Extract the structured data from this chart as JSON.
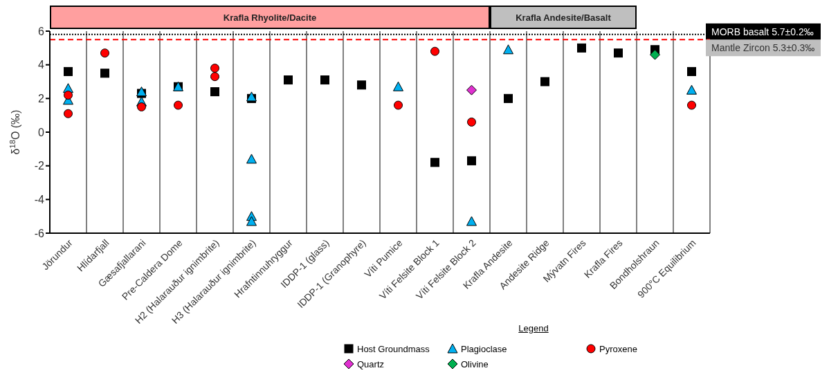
{
  "chart_data": {
    "type": "scatter",
    "ylabel": "δ$^{18}$O (‰)",
    "categories": [
      "Jörundur",
      "Hlídarfjall",
      "Gæsafjallarani",
      "Pre-Caldera Dome",
      "H2 (Halarauður ignimbrite)",
      "H3 (Halarauður ignimbrite)",
      "Hrafntinnuhryggur",
      "IDDP-1 (glass)",
      "IDDP-1 (Granophyre)",
      "Víti Pumice",
      "Víti Felsite Block 1",
      "Víti Felsite Block 2",
      "Krafla Andesite",
      "Andesite Ridge",
      "Mývatn Fires",
      "Krafla Fires",
      "Bondholshraun",
      "900°C Equilibrium"
    ],
    "series": [
      {
        "name": "Host Groundmass",
        "color": "#000000",
        "marker": "square",
        "x": [
          "Jörundur",
          "Hlídarfjall",
          "Gæsafjallarani",
          "Pre-Caldera Dome",
          "H2 (Halarauður ignimbrite)",
          "H3 (Halarauður ignimbrite)",
          "Hrafntinnuhryggur",
          "IDDP-1 (glass)",
          "IDDP-1 (Granophyre)",
          "Víti Felsite Block 1",
          "Víti Felsite Block 2",
          "Krafla Andesite",
          "Andesite Ridge",
          "Mývatn Fires",
          "Krafla Fires",
          "Bondholshraun",
          "900°C Equilibrium"
        ],
        "values": [
          3.6,
          3.5,
          2.3,
          2.7,
          2.4,
          2.0,
          3.1,
          3.1,
          2.8,
          -1.8,
          -1.7,
          2.0,
          3.0,
          5.0,
          4.7,
          4.9,
          3.6
        ]
      },
      {
        "name": "Plagioclase",
        "color": "#00b0f0",
        "marker": "triangle",
        "x": [
          "Jörundur",
          "Jörundur",
          "Gæsafjallarani",
          "Gæsafjallarani",
          "Pre-Caldera Dome",
          "H3 (Halarauður ignimbrite)",
          "H3 (Halarauður ignimbrite)",
          "H3 (Halarauður ignimbrite)",
          "H3 (Halarauður ignimbrite)",
          "Víti Pumice",
          "Víti Felsite Block 2",
          "Krafla Andesite",
          "900°C Equilibrium"
        ],
        "values": [
          2.6,
          1.9,
          2.4,
          1.8,
          2.7,
          2.1,
          -1.6,
          -5.0,
          -5.3,
          2.7,
          -5.3,
          4.9,
          2.5
        ]
      },
      {
        "name": "Pyroxene",
        "color": "#ff0000",
        "marker": "circle",
        "x": [
          "Jörundur",
          "Jörundur",
          "Hlídarfjall",
          "Gæsafjallarani",
          "Pre-Caldera Dome",
          "H2 (Halarauður ignimbrite)",
          "H2 (Halarauður ignimbrite)",
          "Víti Pumice",
          "Víti Felsite Block 1",
          "Víti Felsite Block 2",
          "900°C Equilibrium"
        ],
        "values": [
          2.2,
          1.1,
          4.7,
          1.5,
          1.6,
          3.8,
          3.3,
          1.6,
          4.8,
          0.6,
          1.6
        ]
      },
      {
        "name": "Quartz",
        "color": "#e030d0",
        "marker": "diamond",
        "x": [
          "Víti Felsite Block 2"
        ],
        "values": [
          2.5
        ]
      },
      {
        "name": "Olivine",
        "color": "#00b050",
        "marker": "diamond",
        "x": [
          "Bondholshraun"
        ],
        "values": [
          4.6
        ]
      }
    ],
    "ylim": [
      -6,
      6
    ],
    "yticks": [
      -6,
      -4,
      -2,
      0,
      2,
      4,
      6
    ],
    "grid": "x",
    "ref_lines": [
      {
        "axis": "y",
        "value": 5.8,
        "label": "MORB basalt 5.7±0.2‰",
        "color": "#000000",
        "line_style": "dotted"
      },
      {
        "axis": "y",
        "value": 5.5,
        "label": "Mantle Zircon 5.3±0.3‰",
        "color": "#ff0000",
        "line_style": "dashed"
      }
    ],
    "annotations": [
      "Krafla Rhyolite/Dacite",
      "Krafla Andesite/Basalt"
    ],
    "legend": "bottom",
    "legend_title": "Legend"
  }
}
